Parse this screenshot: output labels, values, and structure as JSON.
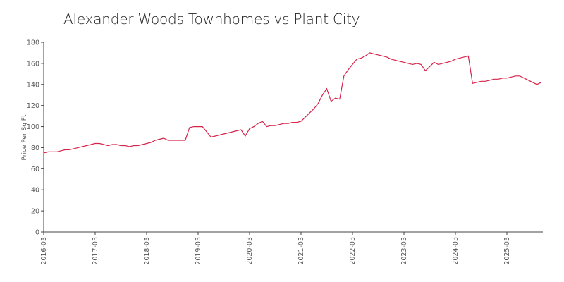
{
  "chart_data": {
    "type": "line",
    "title": "Alexander Woods Townhomes vs Plant City",
    "ylabel": "Price Per Sq Ft",
    "xlabel": "",
    "ylim": [
      0,
      180
    ],
    "yticks": [
      0,
      20,
      40,
      60,
      80,
      100,
      120,
      140,
      160,
      180
    ],
    "xticks": [
      "2016-03",
      "2017-03",
      "2018-03",
      "2019-03",
      "2020-03",
      "2021-03",
      "2022-03",
      "2023-03",
      "2024-03",
      "2025-03"
    ],
    "grid": false,
    "colors": {
      "line": "#d6234a"
    },
    "series": [
      {
        "x": [
          "2016-03",
          "2016-04",
          "2016-05",
          "2016-06",
          "2016-07",
          "2016-08",
          "2016-09",
          "2016-10",
          "2016-11",
          "2016-12",
          "2017-01",
          "2017-02",
          "2017-03",
          "2017-04",
          "2017-05",
          "2017-06",
          "2017-07",
          "2017-08",
          "2017-09",
          "2017-10",
          "2017-11",
          "2017-12",
          "2018-01",
          "2018-02",
          "2018-03",
          "2018-04",
          "2018-05",
          "2018-06",
          "2018-07",
          "2018-08",
          "2018-09",
          "2018-10",
          "2018-11",
          "2018-12",
          "2019-01",
          "2019-02",
          "2019-03",
          "2019-04",
          "2019-05",
          "2019-06",
          "2019-07",
          "2019-08",
          "2019-09",
          "2019-10",
          "2019-11",
          "2019-12",
          "2020-01",
          "2020-02",
          "2020-03",
          "2020-04",
          "2020-05",
          "2020-06",
          "2020-07",
          "2020-08",
          "2020-09",
          "2020-10",
          "2020-11",
          "2020-12",
          "2021-01",
          "2021-02",
          "2021-03",
          "2021-04",
          "2021-05",
          "2021-06",
          "2021-07",
          "2021-08",
          "2021-09",
          "2021-10",
          "2021-11",
          "2021-12",
          "2022-01",
          "2022-02",
          "2022-03",
          "2022-04",
          "2022-05",
          "2022-06",
          "2022-07",
          "2022-08",
          "2022-09",
          "2022-10",
          "2022-11",
          "2022-12",
          "2023-01",
          "2023-02",
          "2023-03",
          "2023-04",
          "2023-05",
          "2023-06",
          "2023-07",
          "2023-08",
          "2023-09",
          "2023-10",
          "2023-11",
          "2023-12",
          "2024-01",
          "2024-02",
          "2024-03",
          "2024-04",
          "2024-05",
          "2024-06",
          "2024-07",
          "2024-08",
          "2024-09",
          "2024-10",
          "2024-11",
          "2024-12",
          "2025-01",
          "2025-02",
          "2025-03",
          "2025-04",
          "2025-05",
          "2025-06",
          "2025-07",
          "2025-08",
          "2025-09",
          "2025-10",
          "2025-11"
        ],
        "y": [
          75,
          76,
          76,
          76,
          77,
          78,
          78,
          79,
          80,
          81,
          82,
          83,
          84,
          84,
          83,
          82,
          83,
          83,
          82,
          82,
          81,
          82,
          82,
          83,
          84,
          85,
          87,
          88,
          89,
          87,
          87,
          87,
          87,
          87,
          99,
          100,
          100,
          100,
          95,
          90,
          91,
          92,
          93,
          94,
          95,
          96,
          97,
          91,
          98,
          100,
          103,
          105,
          100,
          101,
          101,
          102,
          103,
          103,
          104,
          104,
          105,
          109,
          113,
          117,
          122,
          130,
          136,
          124,
          127,
          126,
          148,
          154,
          159,
          164,
          165,
          167,
          170,
          169,
          168,
          167,
          166,
          164,
          163,
          162,
          161,
          160,
          159,
          160,
          159,
          153,
          157,
          161,
          159,
          160,
          161,
          162,
          164,
          165,
          166,
          167,
          141,
          142,
          143,
          143,
          144,
          145,
          145,
          146,
          146,
          147,
          148,
          148,
          146,
          144,
          142,
          140,
          142
        ]
      }
    ]
  }
}
